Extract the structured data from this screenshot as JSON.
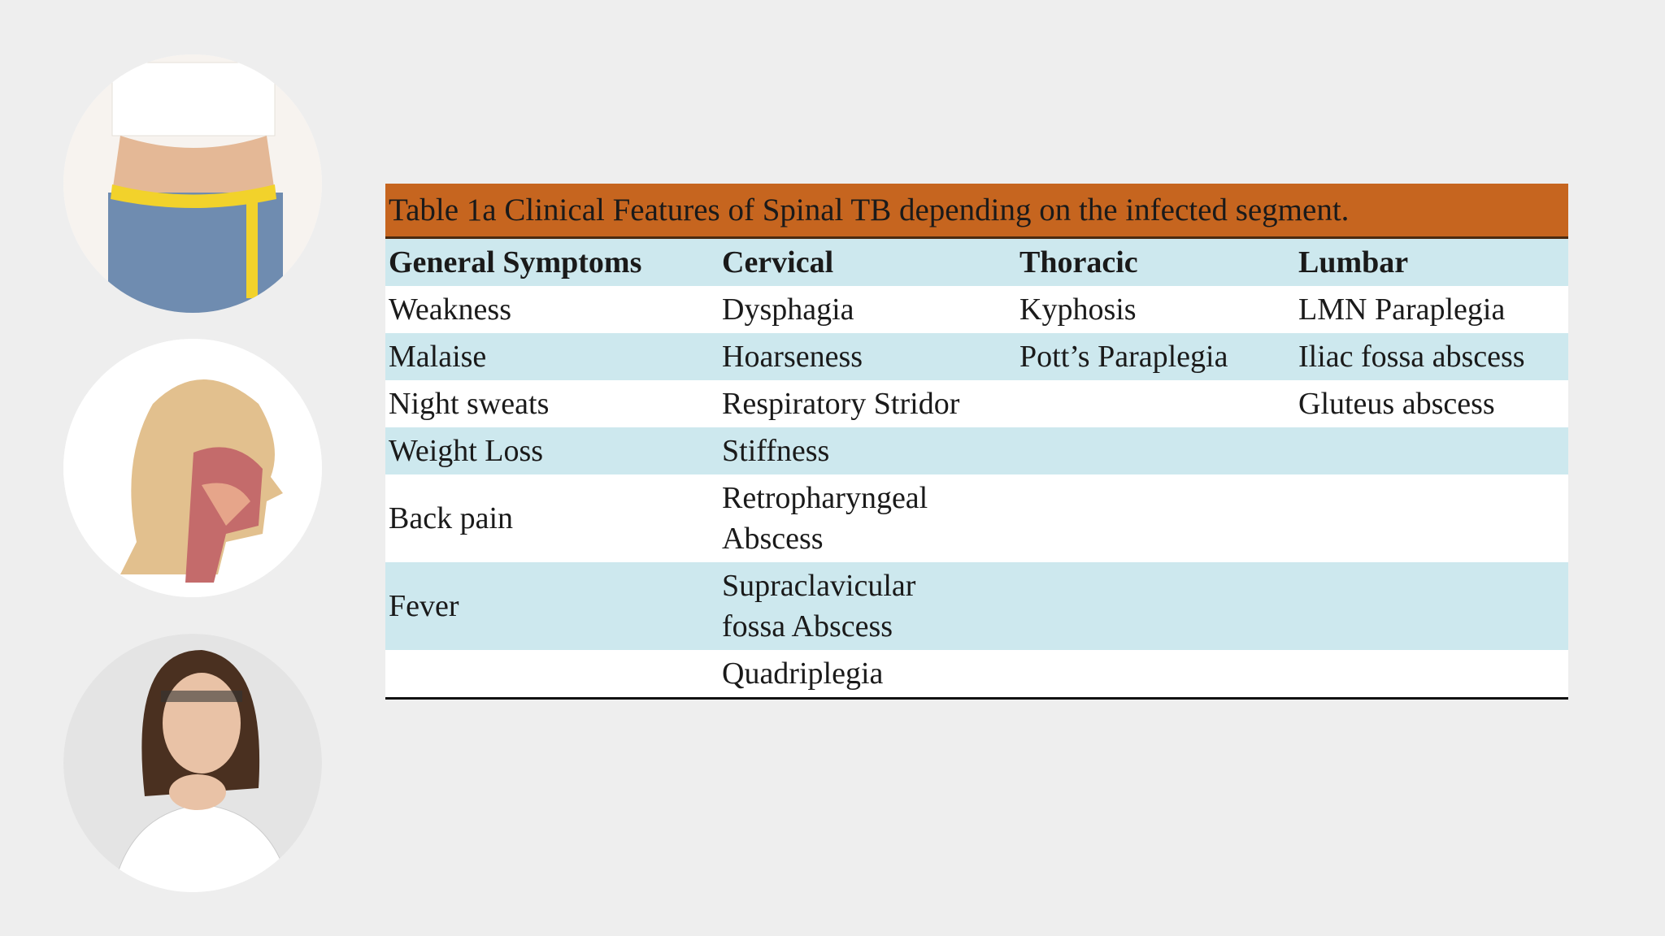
{
  "table": {
    "title": "Table 1a Clinical Features of Spinal TB depending on the infected segment.",
    "headers": [
      "General Symptoms",
      "Cervical",
      "Thoracic",
      "Lumbar"
    ],
    "rows": [
      [
        "Weakness",
        "Dysphagia",
        "Kyphosis",
        "LMN Paraplegia"
      ],
      [
        "Malaise",
        "Hoarseness",
        "Pott’s Paraplegia",
        "Iliac fossa abscess"
      ],
      [
        "Night sweats",
        "Respiratory Stridor",
        null,
        "Gluteus abscess"
      ],
      [
        "Weight Loss",
        "Stiffness",
        null,
        null
      ],
      [
        "Back pain",
        [
          "Retropharyngeal",
          "Abscess"
        ],
        null,
        null
      ],
      [
        "Fever",
        [
          "Supraclavicular",
          "fossa Abscess"
        ],
        null,
        null
      ],
      [
        null,
        "Quadriplegia",
        null,
        null
      ]
    ]
  }
}
